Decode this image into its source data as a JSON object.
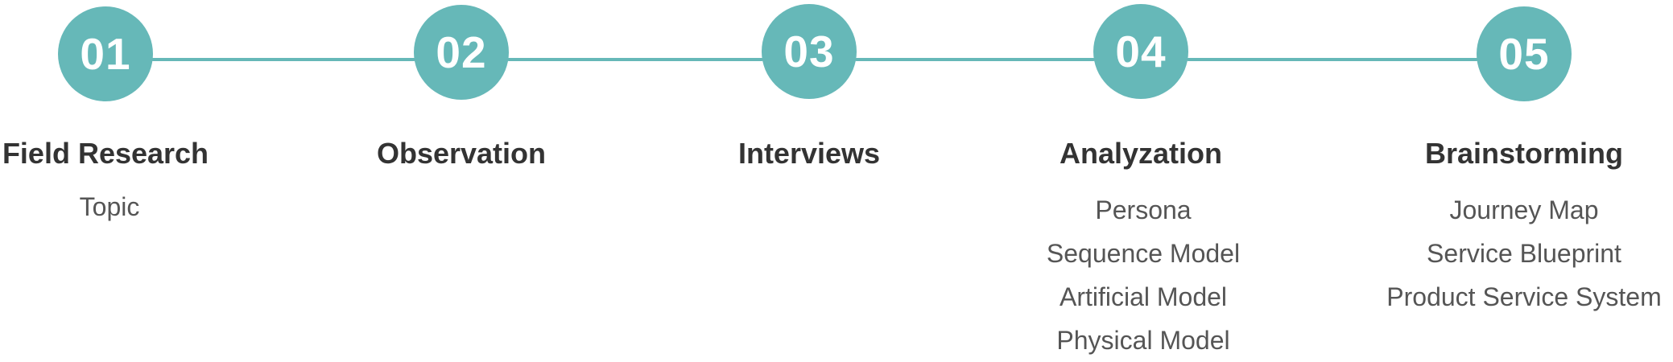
{
  "colors": {
    "accent": "#66b8b8",
    "title_text": "#333333",
    "item_text": "#555555"
  },
  "steps": [
    {
      "number": "01",
      "title": "Field Research",
      "items": [
        "Topic"
      ]
    },
    {
      "number": "02",
      "title": "Observation",
      "items": []
    },
    {
      "number": "03",
      "title": "Interviews",
      "items": []
    },
    {
      "number": "04",
      "title": "Analyzation",
      "items": [
        "Persona",
        "Sequence Model",
        "Artificial Model",
        "Physical Model"
      ]
    },
    {
      "number": "05",
      "title": "Brainstorming",
      "items": [
        "Journey Map",
        "Service Blueprint",
        "Product Service System"
      ]
    }
  ]
}
